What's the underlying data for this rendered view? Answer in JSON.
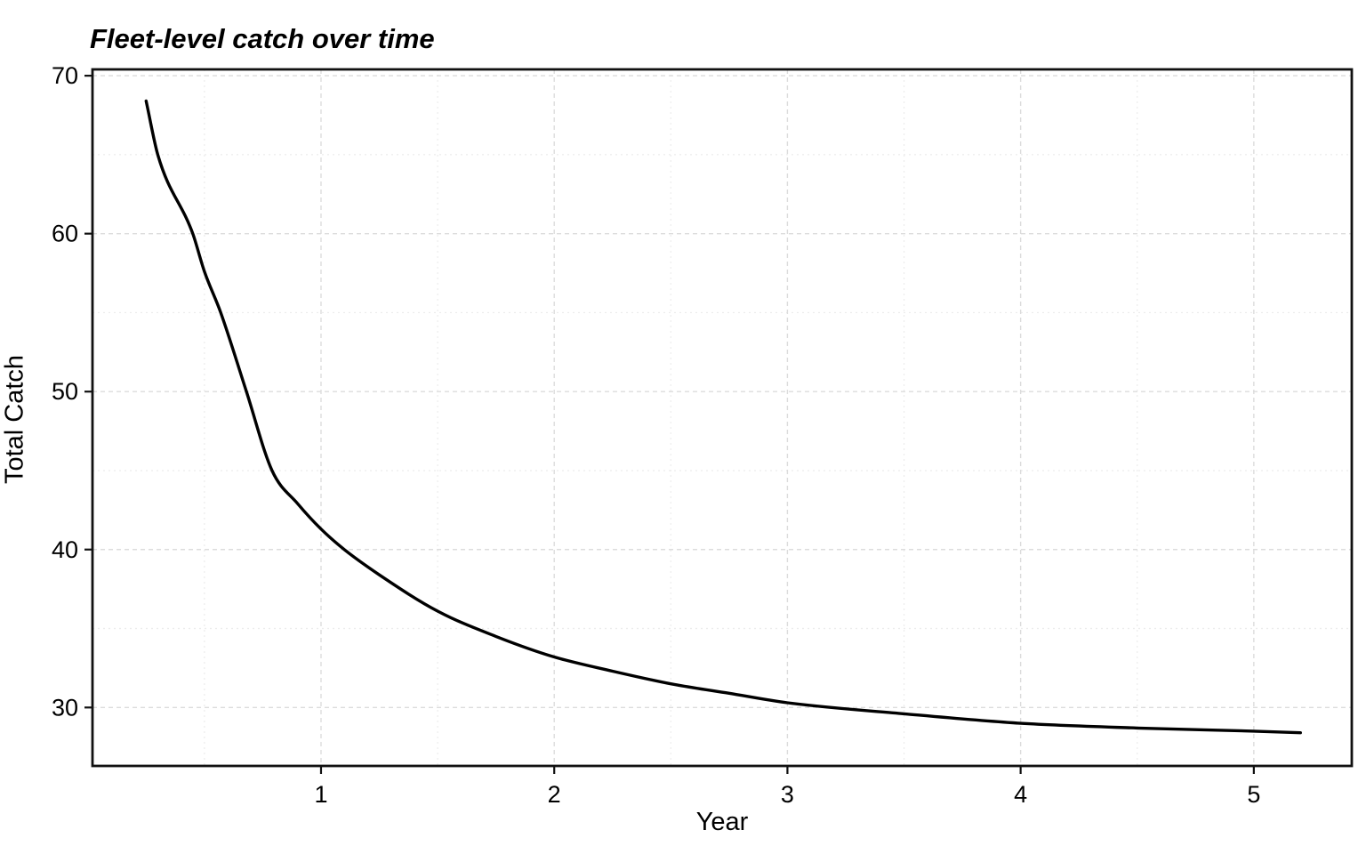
{
  "chart_data": {
    "type": "line",
    "title": "Fleet-level catch over time",
    "xlabel": "Year",
    "ylabel": "Total Catch",
    "x_ticks": [
      1,
      2,
      3,
      4,
      5
    ],
    "y_ticks": [
      30,
      40,
      50,
      60,
      70
    ],
    "x_minor_ticks": [
      0.5,
      1.5,
      2.5,
      3.5,
      4.5
    ],
    "y_minor_ticks": [
      35,
      45,
      55,
      65
    ],
    "xlim": [
      0.02,
      5.42
    ],
    "ylim": [
      26.3,
      70.4
    ],
    "grid": "major and minor dashed light-gray gridlines on white panel, black panel border",
    "legend_position": "none",
    "series": [
      {
        "name": "Total catch",
        "color": "#000000",
        "points": [
          [
            0.25,
            68.4
          ],
          [
            0.3,
            65.0
          ],
          [
            0.45,
            60.0
          ],
          [
            0.5,
            57.6
          ],
          [
            0.57,
            55.0
          ],
          [
            0.68,
            50.0
          ],
          [
            0.79,
            45.0
          ],
          [
            0.9,
            42.9
          ],
          [
            1.0,
            41.3
          ],
          [
            1.1,
            40.0
          ],
          [
            1.25,
            38.4
          ],
          [
            1.5,
            36.1
          ],
          [
            1.75,
            34.5
          ],
          [
            2.0,
            33.2
          ],
          [
            2.25,
            32.3
          ],
          [
            2.5,
            31.5
          ],
          [
            2.75,
            30.9
          ],
          [
            3.0,
            30.3
          ],
          [
            3.5,
            29.6
          ],
          [
            4.0,
            29.0
          ],
          [
            4.5,
            28.7
          ],
          [
            5.0,
            28.5
          ],
          [
            5.2,
            28.4
          ]
        ]
      }
    ],
    "colors": {
      "line": "#000000",
      "grid_major": "#dcdcdc",
      "grid_minor": "#ececec",
      "border": "#111111",
      "text": "#000000",
      "background": "#ffffff"
    }
  }
}
